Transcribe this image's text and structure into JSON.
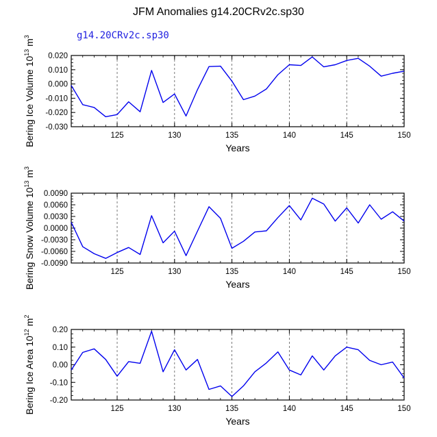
{
  "title": "JFM Anomalies g14.20CRv2c.sp30",
  "subtitle": "g14.20CRv2c.sp30",
  "colors": {
    "line": "#0000ee",
    "grid": "#555555",
    "frame": "#000000"
  },
  "chart_data": [
    {
      "type": "line",
      "ylabel": {
        "text": "Bering Ice Volume 10",
        "exp": "13",
        "unit": " m",
        "unit_exp": "3"
      },
      "xlabel": "Years",
      "xlim": [
        121,
        150
      ],
      "ylim": [
        -0.03,
        0.02
      ],
      "xticks": [
        125,
        130,
        135,
        140,
        145,
        150
      ],
      "yticks": [
        -0.03,
        -0.02,
        -0.01,
        0.0,
        0.01,
        0.02
      ],
      "yticklabels": [
        "-0.030",
        "-0.020",
        "-0.010",
        "0.000",
        "0.010",
        "0.020"
      ],
      "grid_x": [
        125,
        130,
        135,
        140,
        145
      ],
      "series": [
        {
          "name": "g14.20CRv2c.sp30",
          "x": [
            121,
            122,
            123,
            124,
            125,
            126,
            127,
            128,
            129,
            130,
            131,
            132,
            133,
            134,
            135,
            136,
            137,
            138,
            139,
            140,
            141,
            142,
            143,
            144,
            145,
            146,
            147,
            148,
            149,
            150
          ],
          "values": [
            -0.001,
            -0.0145,
            -0.0165,
            -0.023,
            -0.0215,
            -0.0125,
            -0.0195,
            0.0095,
            -0.013,
            -0.007,
            -0.0225,
            -0.004,
            0.0122,
            0.0125,
            0.002,
            -0.011,
            -0.0085,
            -0.0035,
            0.0065,
            0.0135,
            0.013,
            0.019,
            0.012,
            0.0135,
            0.0165,
            0.018,
            0.0125,
            0.0055,
            0.0075,
            0.009
          ]
        }
      ]
    },
    {
      "type": "line",
      "ylabel": {
        "text": "Bering Snow Volume 10",
        "exp": "13",
        "unit": " m",
        "unit_exp": "3"
      },
      "xlabel": "Years",
      "xlim": [
        121,
        150
      ],
      "ylim": [
        -0.009,
        0.009
      ],
      "xticks": [
        125,
        130,
        135,
        140,
        145,
        150
      ],
      "yticks": [
        -0.009,
        -0.006,
        -0.003,
        0.0,
        0.003,
        0.006,
        0.009
      ],
      "yticklabels": [
        "-0.0090",
        "-0.0060",
        "-0.0030",
        "0.0000",
        "0.0030",
        "0.0060",
        "0.0090"
      ],
      "grid_x": [
        125,
        130,
        135,
        140,
        145
      ],
      "series": [
        {
          "name": "g14.20CRv2c.sp30",
          "x": [
            121,
            122,
            123,
            124,
            125,
            126,
            127,
            128,
            129,
            130,
            131,
            132,
            133,
            134,
            135,
            136,
            137,
            138,
            139,
            140,
            141,
            142,
            143,
            144,
            145,
            146,
            147,
            148,
            149,
            150
          ],
          "values": [
            0.0015,
            -0.0048,
            -0.0066,
            -0.0078,
            -0.0063,
            -0.005,
            -0.0068,
            0.0032,
            -0.0038,
            -0.0008,
            -0.0071,
            -0.0008,
            0.0055,
            0.0025,
            -0.0052,
            -0.0034,
            -0.001,
            -0.0007,
            0.0027,
            0.0058,
            0.0021,
            0.0077,
            0.0062,
            0.0018,
            0.0052,
            0.0013,
            0.006,
            0.0023,
            0.0042,
            0.0018
          ]
        }
      ]
    },
    {
      "type": "line",
      "ylabel": {
        "text": "Bering Ice Area 10",
        "exp": "12",
        "unit": " m",
        "unit_exp": "2"
      },
      "xlabel": "Years",
      "xlim": [
        121,
        150
      ],
      "ylim": [
        -0.2,
        0.2
      ],
      "xticks": [
        125,
        130,
        135,
        140,
        145,
        150
      ],
      "yticks": [
        -0.2,
        -0.1,
        0.0,
        0.1,
        0.2
      ],
      "yticklabels": [
        "-0.20",
        "-0.10",
        "0.00",
        "0.10",
        "0.20"
      ],
      "grid_x": [
        125,
        130,
        135,
        140,
        145
      ],
      "series": [
        {
          "name": "g14.20CRv2c.sp30",
          "x": [
            121,
            122,
            123,
            124,
            125,
            126,
            127,
            128,
            129,
            130,
            131,
            132,
            133,
            134,
            135,
            136,
            137,
            138,
            139,
            140,
            141,
            142,
            143,
            144,
            145,
            146,
            147,
            148,
            149,
            150
          ],
          "values": [
            -0.03,
            0.07,
            0.09,
            0.03,
            -0.065,
            0.018,
            0.008,
            0.19,
            -0.04,
            0.085,
            -0.03,
            0.03,
            -0.14,
            -0.12,
            -0.18,
            -0.12,
            -0.04,
            0.01,
            0.073,
            -0.03,
            -0.058,
            0.05,
            -0.03,
            0.05,
            0.1,
            0.085,
            0.025,
            0.0,
            0.015,
            -0.075
          ]
        }
      ]
    }
  ]
}
